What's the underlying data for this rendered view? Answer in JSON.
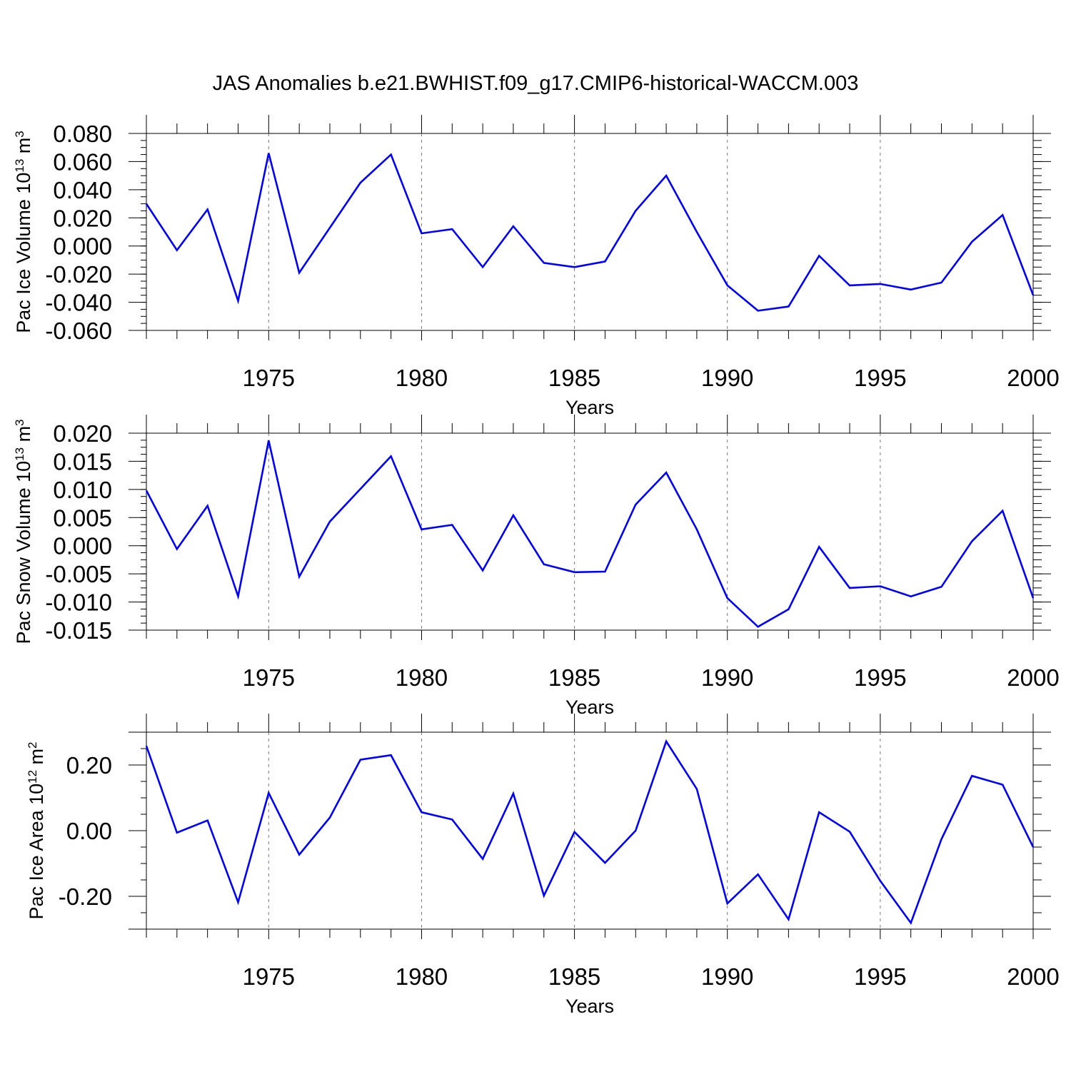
{
  "title": "JAS Anomalies b.e21.BWHIST.f09_g17.CMIP6-historical-WACCM.003",
  "line_color": "#0000ff",
  "chart_data": [
    {
      "type": "line",
      "ylabel_main": "Pac Ice Volume 10",
      "ylabel_exp": "13",
      "ylabel_unit": " m",
      "ylabel_unit_exp": "3",
      "xlabel": "Years",
      "xlim": [
        1971,
        2000
      ],
      "ylim": [
        -0.06,
        0.08
      ],
      "yticks": [
        -0.06,
        -0.04,
        -0.02,
        0.0,
        0.02,
        0.04,
        0.06,
        0.08
      ],
      "ytick_labels": [
        "-0.060",
        "-0.040",
        "-0.020",
        "0.000",
        "0.020",
        "0.040",
        "0.060",
        "0.080"
      ],
      "yminor_step": 0.005,
      "xticks": [
        1975,
        1980,
        1985,
        1990,
        1995,
        2000
      ],
      "xtick_labels": [
        "1975",
        "1980",
        "1985",
        "1990",
        "1995",
        "2000"
      ],
      "x": [
        1971,
        1972,
        1973,
        1974,
        1975,
        1976,
        1977,
        1978,
        1979,
        1980,
        1981,
        1982,
        1983,
        1984,
        1985,
        1986,
        1987,
        1988,
        1989,
        1990,
        1991,
        1992,
        1993,
        1994,
        1995,
        1996,
        1997,
        1998,
        1999,
        2000
      ],
      "values": [
        0.03,
        -0.003,
        0.026,
        -0.039,
        0.066,
        -0.019,
        0.013,
        0.045,
        0.065,
        0.009,
        0.012,
        -0.015,
        0.014,
        -0.012,
        -0.015,
        -0.011,
        0.025,
        0.05,
        0.01,
        -0.028,
        -0.046,
        -0.043,
        -0.007,
        -0.028,
        -0.027,
        -0.031,
        -0.026,
        0.003,
        0.022,
        -0.035
      ]
    },
    {
      "type": "line",
      "ylabel_main": "Pac Snow Volume 10",
      "ylabel_exp": "13",
      "ylabel_unit": " m",
      "ylabel_unit_exp": "3",
      "xlabel": "Years",
      "xlim": [
        1971,
        2000
      ],
      "ylim": [
        -0.015,
        0.02
      ],
      "yticks": [
        -0.015,
        -0.01,
        -0.005,
        0.0,
        0.005,
        0.01,
        0.015,
        0.02
      ],
      "ytick_labels": [
        "-0.015",
        "-0.010",
        "-0.005",
        "0.000",
        "0.005",
        "0.010",
        "0.015",
        "0.020"
      ],
      "yminor_step": 0.00125,
      "xticks": [
        1975,
        1980,
        1985,
        1990,
        1995,
        2000
      ],
      "xtick_labels": [
        "1975",
        "1980",
        "1985",
        "1990",
        "1995",
        "2000"
      ],
      "x": [
        1971,
        1972,
        1973,
        1974,
        1975,
        1976,
        1977,
        1978,
        1979,
        1980,
        1981,
        1982,
        1983,
        1984,
        1985,
        1986,
        1987,
        1988,
        1989,
        1990,
        1991,
        1992,
        1993,
        1994,
        1995,
        1996,
        1997,
        1998,
        1999,
        2000
      ],
      "values": [
        0.0098,
        -0.0006,
        0.0071,
        -0.009,
        0.0187,
        -0.0055,
        0.0043,
        0.0101,
        0.0159,
        0.0029,
        0.0037,
        -0.0044,
        0.0054,
        -0.0033,
        -0.0047,
        -0.0046,
        0.0073,
        0.013,
        0.0029,
        -0.0093,
        -0.0144,
        -0.0113,
        -0.0002,
        -0.0075,
        -0.0072,
        -0.009,
        -0.0073,
        0.0008,
        0.0062,
        -0.0093
      ]
    },
    {
      "type": "line",
      "ylabel_main": "Pac Ice Area 10",
      "ylabel_exp": "12",
      "ylabel_unit": " m",
      "ylabel_unit_exp": "2",
      "xlabel": "Years",
      "xlim": [
        1971,
        2000
      ],
      "ylim": [
        -0.3,
        0.3
      ],
      "yticks": [
        -0.2,
        0.0,
        0.2
      ],
      "ytick_labels": [
        "-0.20",
        "0.00",
        "0.20"
      ],
      "yminor_step": 0.05,
      "xticks": [
        1975,
        1980,
        1985,
        1990,
        1995,
        2000
      ],
      "xtick_labels": [
        "1975",
        "1980",
        "1985",
        "1990",
        "1995",
        "2000"
      ],
      "x": [
        1971,
        1972,
        1973,
        1974,
        1975,
        1976,
        1977,
        1978,
        1979,
        1980,
        1981,
        1982,
        1983,
        1984,
        1985,
        1986,
        1987,
        1988,
        1989,
        1990,
        1991,
        1992,
        1993,
        1994,
        1995,
        1996,
        1997,
        1998,
        1999,
        2000
      ],
      "values": [
        0.258,
        -0.006,
        0.031,
        -0.218,
        0.115,
        -0.073,
        0.04,
        0.216,
        0.23,
        0.056,
        0.034,
        -0.086,
        0.113,
        -0.198,
        -0.004,
        -0.098,
        0.0,
        0.272,
        0.127,
        -0.222,
        -0.133,
        -0.27,
        0.056,
        -0.003,
        -0.153,
        -0.281,
        -0.026,
        0.167,
        0.14,
        -0.05
      ]
    }
  ]
}
